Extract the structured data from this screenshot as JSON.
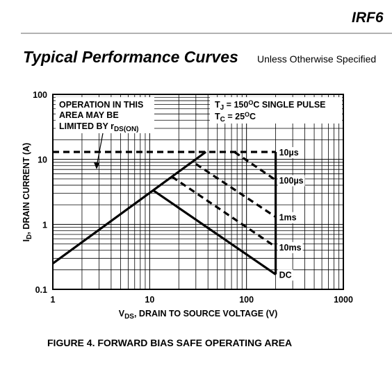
{
  "header": {
    "part": "IRF6",
    "title": "Typical Performance Curves",
    "subtitle": "Unless Otherwise Specified"
  },
  "chart_data": {
    "type": "line",
    "log_x": true,
    "log_y": true,
    "grid": true,
    "xlabel": [
      "V",
      "DS",
      ", DRAIN TO SOURCE VOLTAGE (V)"
    ],
    "ylabel": [
      "I",
      "D",
      ", DRAIN CURRENT (A)"
    ],
    "note": [
      "OPERATION IN THIS",
      "AREA MAY BE",
      "LIMITED BY r",
      "DS(ON)"
    ],
    "conditions": [
      [
        "T",
        "J",
        " = 150",
        "O",
        "C SINGLE PULSE"
      ],
      [
        "T",
        "C",
        " = 25",
        "O",
        "C"
      ]
    ],
    "xlim": [
      1,
      1000
    ],
    "ylim": [
      0.1,
      100
    ],
    "xticks": [
      1,
      10,
      100,
      1000
    ],
    "yticks": [
      0.1,
      1,
      10,
      100
    ],
    "xminor": [
      2,
      3,
      4,
      5,
      6,
      7,
      8,
      9,
      20,
      30,
      40,
      50,
      60,
      70,
      80,
      90,
      200,
      300,
      400,
      500,
      600,
      700,
      800,
      900
    ],
    "yminor": [
      0.2,
      0.3,
      0.4,
      0.5,
      0.6,
      0.7,
      0.8,
      0.9,
      2,
      3,
      4,
      5,
      6,
      7,
      8,
      9,
      20,
      30,
      40,
      50,
      60,
      70,
      80,
      90
    ],
    "color": "#000000",
    "series": [
      {
        "name": "10µs",
        "dashed": true,
        "x": [
          1,
          200
        ],
        "values": [
          13,
          13
        ]
      },
      {
        "name": "100µs",
        "dashed": true,
        "x": [
          75,
          200
        ],
        "values": [
          13,
          4.8
        ]
      },
      {
        "name": "1ms",
        "dashed": true,
        "x": [
          30,
          200
        ],
        "values": [
          8.5,
          1.3
        ]
      },
      {
        "name": "10ms",
        "dashed": true,
        "x": [
          17,
          200
        ],
        "values": [
          5.4,
          0.45
        ]
      },
      {
        "name": "DC",
        "dashed": false,
        "x": [
          11,
          200
        ],
        "values": [
          3.3,
          0.17
        ]
      },
      {
        "dashed": false,
        "x": [
          1,
          38
        ],
        "values": [
          0.25,
          13
        ]
      },
      {
        "dashed": false,
        "x": [
          200,
          200
        ],
        "values": [
          13,
          0.17
        ]
      }
    ],
    "caption": "FIGURE 4.  FORWARD BIAS SAFE OPERATING AREA"
  }
}
